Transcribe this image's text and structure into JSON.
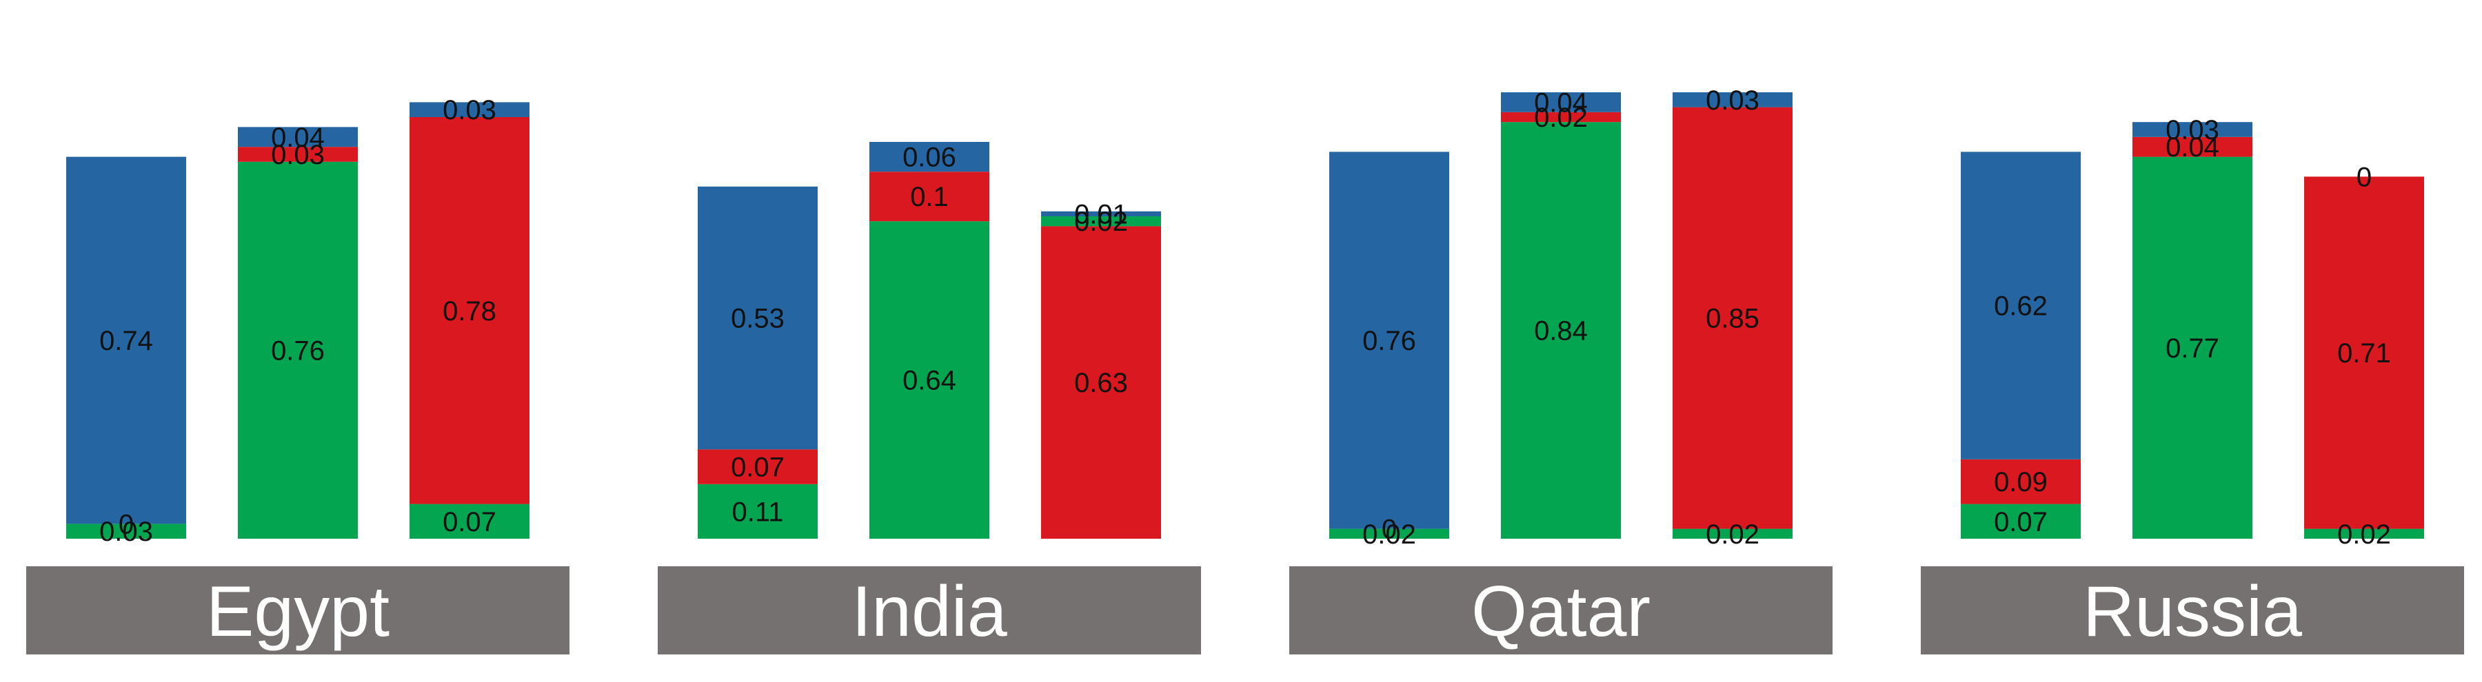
{
  "chart_data": {
    "type": "bar",
    "stacked": true,
    "colors": {
      "blue": "#2566A2",
      "red": "#D9181F",
      "green": "#03A550",
      "label_band": "#767171"
    },
    "groups": [
      {
        "label": "Egypt",
        "bars": [
          {
            "segments": [
              {
                "color": "green",
                "value": 0.03,
                "label": "0.03"
              },
              {
                "color": "red",
                "value": 0,
                "label": "0"
              },
              {
                "color": "blue",
                "value": 0.74,
                "label": "0.74"
              }
            ]
          },
          {
            "segments": [
              {
                "color": "green",
                "value": 0.76,
                "label": "0.76"
              },
              {
                "color": "red",
                "value": 0.03,
                "label": "0.03"
              },
              {
                "color": "blue",
                "value": 0.04,
                "label": "0.04"
              }
            ]
          },
          {
            "segments": [
              {
                "color": "green",
                "value": 0.07,
                "label": "0.07"
              },
              {
                "color": "red",
                "value": 0.78,
                "label": "0.78"
              },
              {
                "color": "blue",
                "value": 0.03,
                "label": "0.03"
              }
            ]
          }
        ]
      },
      {
        "label": "India",
        "bars": [
          {
            "segments": [
              {
                "color": "green",
                "value": 0.11,
                "label": "0.11"
              },
              {
                "color": "red",
                "value": 0.07,
                "label": "0.07"
              },
              {
                "color": "blue",
                "value": 0.53,
                "label": "0.53"
              }
            ]
          },
          {
            "segments": [
              {
                "color": "green",
                "value": 0.64,
                "label": "0.64"
              },
              {
                "color": "red",
                "value": 0.1,
                "label": "0.1"
              },
              {
                "color": "blue",
                "value": 0.06,
                "label": "0.06"
              }
            ]
          },
          {
            "segments": [
              {
                "color": "red",
                "value": 0.63,
                "label": "0.63"
              },
              {
                "color": "green",
                "value": 0.02,
                "label": "0.02"
              },
              {
                "color": "blue",
                "value": 0.01,
                "label": "0.01"
              }
            ]
          }
        ]
      },
      {
        "label": "Qatar",
        "bars": [
          {
            "segments": [
              {
                "color": "green",
                "value": 0.02,
                "label": "0.02"
              },
              {
                "color": "red",
                "value": 0,
                "label": "0"
              },
              {
                "color": "blue",
                "value": 0.76,
                "label": "0.76"
              }
            ]
          },
          {
            "segments": [
              {
                "color": "green",
                "value": 0.84,
                "label": "0.84"
              },
              {
                "color": "red",
                "value": 0.02,
                "label": "0.02"
              },
              {
                "color": "blue",
                "value": 0.04,
                "label": "0.04"
              }
            ]
          },
          {
            "segments": [
              {
                "color": "green",
                "value": 0.02,
                "label": "0.02"
              },
              {
                "color": "red",
                "value": 0.85,
                "label": "0.85"
              },
              {
                "color": "blue",
                "value": 0.03,
                "label": "0.03"
              }
            ]
          }
        ]
      },
      {
        "label": "Russia",
        "bars": [
          {
            "segments": [
              {
                "color": "green",
                "value": 0.07,
                "label": "0.07"
              },
              {
                "color": "red",
                "value": 0.09,
                "label": "0.09"
              },
              {
                "color": "blue",
                "value": 0.62,
                "label": "0.62"
              }
            ]
          },
          {
            "segments": [
              {
                "color": "green",
                "value": 0.77,
                "label": "0.77"
              },
              {
                "color": "red",
                "value": 0.04,
                "label": "0.04"
              },
              {
                "color": "blue",
                "value": 0.03,
                "label": "0.03"
              }
            ]
          },
          {
            "segments": [
              {
                "color": "green",
                "value": 0.02,
                "label": "0.02"
              },
              {
                "color": "red",
                "value": 0.71,
                "label": "0.71"
              },
              {
                "color": "blue",
                "value": 0,
                "label": "0"
              }
            ]
          }
        ]
      }
    ]
  }
}
